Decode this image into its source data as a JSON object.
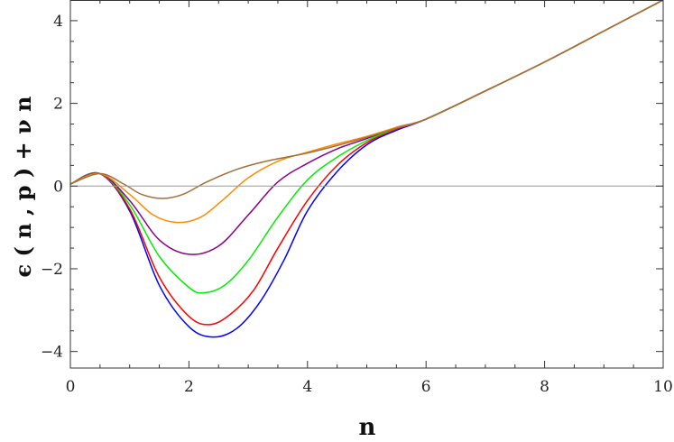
{
  "chart_data": {
    "type": "line",
    "title": "",
    "xlabel": "n",
    "ylabel": "ϵ ( n , p ) + ν n",
    "xlim": [
      0,
      10
    ],
    "ylim": [
      -4.4,
      4.5
    ],
    "x_ticks": [
      0,
      2,
      4,
      6,
      8,
      10
    ],
    "y_ticks": [
      -4,
      -2,
      0,
      2,
      4
    ],
    "x_tick_labels": [
      "0",
      "2",
      "4",
      "6",
      "8",
      "10"
    ],
    "y_tick_labels": [
      "−4",
      "−2",
      "0",
      "2",
      "4"
    ],
    "grid": false,
    "reference_line": {
      "y": 0,
      "color": "#999999"
    },
    "series": [
      {
        "color": "#0000ff",
        "x": [
          0,
          0.5,
          1.0,
          1.5,
          2.0,
          2.4,
          2.8,
          3.2,
          3.6,
          4.0,
          4.5,
          5.0,
          5.5,
          6.0,
          7.0,
          8.0,
          9.0,
          10.0
        ],
        "y": [
          0.05,
          0.3,
          -0.6,
          -2.4,
          -3.4,
          -3.65,
          -3.45,
          -2.8,
          -1.8,
          -0.6,
          0.35,
          1.0,
          1.35,
          1.62,
          2.3,
          3.0,
          3.75,
          4.5
        ]
      },
      {
        "color": "#ff0000",
        "x": [
          0,
          0.5,
          1.0,
          1.5,
          2.0,
          2.35,
          2.7,
          3.1,
          3.5,
          4.0,
          4.5,
          5.0,
          5.5,
          6.0,
          7.0,
          8.0,
          9.0,
          10.0
        ],
        "y": [
          0.05,
          0.3,
          -0.55,
          -2.2,
          -3.15,
          -3.35,
          -3.1,
          -2.5,
          -1.5,
          -0.35,
          0.5,
          1.05,
          1.38,
          1.62,
          2.3,
          3.0,
          3.75,
          4.5
        ]
      },
      {
        "color": "#00ee00",
        "x": [
          0,
          0.5,
          1.0,
          1.5,
          2.0,
          2.25,
          2.6,
          3.0,
          3.5,
          4.0,
          4.5,
          5.0,
          5.5,
          6.0,
          7.0,
          8.0,
          9.0,
          10.0
        ],
        "y": [
          0.05,
          0.3,
          -0.45,
          -1.7,
          -2.45,
          -2.58,
          -2.4,
          -1.8,
          -0.75,
          0.15,
          0.7,
          1.1,
          1.4,
          1.62,
          2.3,
          3.0,
          3.75,
          4.5
        ]
      },
      {
        "color": "#8b008b",
        "x": [
          0,
          0.5,
          1.0,
          1.5,
          2.0,
          2.5,
          3.0,
          3.5,
          4.0,
          4.5,
          5.0,
          5.5,
          6.0,
          7.0,
          8.0,
          9.0,
          10.0
        ],
        "y": [
          0.05,
          0.3,
          -0.35,
          -1.3,
          -1.65,
          -1.45,
          -0.7,
          0.1,
          0.55,
          0.9,
          1.15,
          1.42,
          1.62,
          2.3,
          3.0,
          3.75,
          4.5
        ]
      },
      {
        "color": "#ff8c00",
        "x": [
          0,
          0.5,
          1.0,
          1.4,
          1.8,
          2.2,
          2.6,
          3.0,
          3.5,
          4.0,
          4.5,
          5.0,
          5.5,
          6.0,
          7.0,
          8.0,
          9.0,
          10.0
        ],
        "y": [
          0.05,
          0.3,
          -0.2,
          -0.7,
          -0.88,
          -0.75,
          -0.3,
          0.2,
          0.6,
          0.82,
          1.02,
          1.2,
          1.42,
          1.62,
          2.3,
          3.0,
          3.75,
          4.5
        ]
      },
      {
        "color": "#a0703a",
        "x": [
          0,
          0.5,
          0.9,
          1.2,
          1.55,
          1.9,
          2.3,
          2.8,
          3.3,
          4.0,
          4.5,
          5.0,
          5.5,
          6.0,
          7.0,
          8.0,
          9.0,
          10.0
        ],
        "y": [
          0.05,
          0.3,
          0.05,
          -0.2,
          -0.3,
          -0.2,
          0.1,
          0.4,
          0.6,
          0.8,
          0.98,
          1.18,
          1.4,
          1.62,
          2.3,
          3.0,
          3.75,
          4.5
        ]
      }
    ]
  }
}
